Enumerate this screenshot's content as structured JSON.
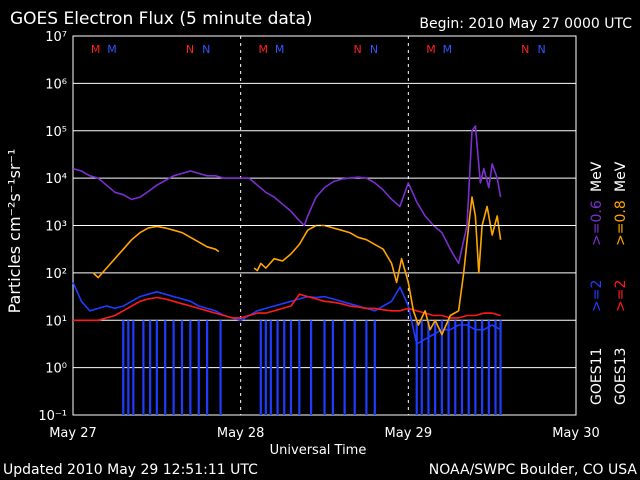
{
  "header": {
    "title": "GOES Electron Flux (5 minute data)",
    "begin": "Begin: 2010 May 27 0000 UTC"
  },
  "footer": {
    "updated": "Updated 2010 May 29 12:51:11 UTC",
    "credit": "NOAA/SWPC Boulder, CO USA"
  },
  "colors": {
    "background": "#000000",
    "goes11_high": "#7b2fd0",
    "goes13_high": "#ffa500",
    "goes11_low": "#1f3cff",
    "goes13_low": "#ff1a1a",
    "marker_M": "#ff2020",
    "marker_M2": "#3355ff",
    "marker_N": "#ff2020",
    "marker_N2": "#3355ff",
    "threshold": "#ffffff"
  },
  "markers": [
    {
      "label": "M",
      "color": "red"
    },
    {
      "label": "M",
      "color": "blue"
    },
    {
      "label": "N",
      "color": "red"
    },
    {
      "label": "N",
      "color": "blue"
    },
    {
      "label": "M",
      "color": "red"
    },
    {
      "label": "M",
      "color": "blue"
    },
    {
      "label": "N",
      "color": "red"
    },
    {
      "label": "N",
      "color": "blue"
    },
    {
      "label": "M",
      "color": "red"
    },
    {
      "label": "M",
      "color": "blue"
    },
    {
      "label": "N",
      "color": "red"
    },
    {
      "label": "N",
      "color": "blue"
    }
  ],
  "right_legend": {
    "goes11": "GOES11",
    "goes13": "GOES13",
    "goes11_low": ">=2",
    "goes13_low": ">=2",
    "goes11_high": ">=0.6",
    "goes13_high": ">=0.8",
    "unit": "MeV"
  },
  "chart_data": {
    "type": "line",
    "title": "GOES Electron Flux (5 minute data)",
    "xlabel": "Universal Time",
    "ylabel": "Particles cm⁻²s⁻¹sr⁻¹",
    "yscale": "log",
    "ylim_exp": [
      -1,
      7
    ],
    "xlim_days": [
      0,
      3
    ],
    "x_tick_labels": [
      "May 27",
      "May 28",
      "May 29",
      "May 30"
    ],
    "y_tick_exponents": [
      -1,
      0,
      1,
      2,
      3,
      4,
      5,
      6,
      7
    ],
    "y_tick_labels": [
      "10⁻¹",
      "10⁰",
      "10¹",
      "10²",
      "10³",
      "10⁴",
      "10⁵",
      "10⁶",
      "10⁷"
    ],
    "threshold_exp": 3,
    "grid": true,
    "series": [
      {
        "name": "GOES11 >=0.6 MeV",
        "points": [
          [
            0,
            4.2
          ],
          [
            0.05,
            4.15
          ],
          [
            0.1,
            4.05
          ],
          [
            0.15,
            4.0
          ],
          [
            0.2,
            3.85
          ],
          [
            0.25,
            3.7
          ],
          [
            0.3,
            3.65
          ],
          [
            0.35,
            3.55
          ],
          [
            0.4,
            3.6
          ],
          [
            0.45,
            3.72
          ],
          [
            0.5,
            3.85
          ],
          [
            0.55,
            3.95
          ],
          [
            0.6,
            4.05
          ],
          [
            0.65,
            4.1
          ],
          [
            0.7,
            4.15
          ],
          [
            0.75,
            4.1
          ],
          [
            0.8,
            4.05
          ],
          [
            0.85,
            4.05
          ],
          [
            0.9,
            4.0
          ],
          [
            0.95,
            4.0
          ],
          [
            1.0,
            4.0
          ],
          [
            1.05,
            4.0
          ],
          [
            1.1,
            3.85
          ],
          [
            1.15,
            3.7
          ],
          [
            1.2,
            3.6
          ],
          [
            1.25,
            3.45
          ],
          [
            1.3,
            3.3
          ],
          [
            1.35,
            3.1
          ],
          [
            1.38,
            3.0
          ],
          [
            1.4,
            3.2
          ],
          [
            1.45,
            3.6
          ],
          [
            1.5,
            3.8
          ],
          [
            1.55,
            3.92
          ],
          [
            1.6,
            3.98
          ],
          [
            1.65,
            4.0
          ],
          [
            1.7,
            4.02
          ],
          [
            1.75,
            4.0
          ],
          [
            1.8,
            3.9
          ],
          [
            1.85,
            3.75
          ],
          [
            1.9,
            3.55
          ],
          [
            1.95,
            3.4
          ],
          [
            2.0,
            3.9
          ],
          [
            2.05,
            3.5
          ],
          [
            2.1,
            3.2
          ],
          [
            2.15,
            3.0
          ],
          [
            2.2,
            2.85
          ],
          [
            2.25,
            2.5
          ],
          [
            2.3,
            2.2
          ],
          [
            2.35,
            3.0
          ],
          [
            2.38,
            5.0
          ],
          [
            2.4,
            5.1
          ],
          [
            2.43,
            3.9
          ],
          [
            2.45,
            4.2
          ],
          [
            2.48,
            3.8
          ],
          [
            2.5,
            4.3
          ],
          [
            2.53,
            4.0
          ],
          [
            2.55,
            3.6
          ]
        ]
      },
      {
        "name": "GOES13 >=0.8 MeV",
        "points": [
          [
            0.12,
            2.0
          ],
          [
            0.15,
            1.9
          ],
          [
            0.2,
            2.1
          ],
          [
            0.25,
            2.3
          ],
          [
            0.3,
            2.5
          ],
          [
            0.35,
            2.7
          ],
          [
            0.4,
            2.85
          ],
          [
            0.45,
            2.95
          ],
          [
            0.5,
            2.98
          ],
          [
            0.55,
            2.95
          ],
          [
            0.6,
            2.9
          ],
          [
            0.65,
            2.85
          ],
          [
            0.7,
            2.75
          ],
          [
            0.75,
            2.65
          ],
          [
            0.8,
            2.55
          ],
          [
            0.85,
            2.5
          ],
          [
            0.87,
            2.45
          ],
          null,
          [
            1.08,
            2.1
          ],
          [
            1.1,
            2.05
          ],
          [
            1.12,
            2.2
          ],
          [
            1.15,
            2.1
          ],
          [
            1.2,
            2.3
          ],
          [
            1.25,
            2.25
          ],
          [
            1.3,
            2.4
          ],
          [
            1.35,
            2.6
          ],
          [
            1.4,
            2.9
          ],
          [
            1.45,
            3.0
          ],
          [
            1.5,
            3.0
          ],
          [
            1.55,
            2.95
          ],
          [
            1.6,
            2.9
          ],
          [
            1.65,
            2.85
          ],
          [
            1.7,
            2.75
          ],
          [
            1.75,
            2.7
          ],
          [
            1.8,
            2.6
          ],
          [
            1.85,
            2.5
          ],
          [
            1.9,
            2.2
          ],
          [
            1.93,
            1.8
          ],
          [
            1.96,
            2.3
          ],
          [
            2.0,
            1.8
          ],
          [
            2.03,
            1.2
          ],
          [
            2.06,
            0.9
          ],
          [
            2.1,
            1.2
          ],
          [
            2.13,
            0.8
          ],
          [
            2.16,
            1.0
          ],
          [
            2.2,
            0.7
          ],
          [
            2.25,
            1.1
          ],
          [
            2.3,
            1.2
          ],
          [
            2.33,
            2.0
          ],
          [
            2.36,
            3.0
          ],
          [
            2.38,
            3.6
          ],
          [
            2.4,
            3.2
          ],
          [
            2.42,
            2.0
          ],
          [
            2.44,
            3.0
          ],
          [
            2.47,
            3.4
          ],
          [
            2.5,
            2.8
          ],
          [
            2.53,
            3.2
          ],
          [
            2.55,
            2.7
          ]
        ]
      },
      {
        "name": "GOES11 >=2 MeV",
        "points": [
          [
            0,
            1.8
          ],
          [
            0.05,
            1.4
          ],
          [
            0.1,
            1.2
          ],
          [
            0.15,
            1.25
          ],
          [
            0.2,
            1.3
          ],
          [
            0.25,
            1.25
          ],
          [
            0.3,
            1.3
          ],
          [
            0.35,
            1.4
          ],
          [
            0.4,
            1.5
          ],
          [
            0.45,
            1.55
          ],
          [
            0.5,
            1.6
          ],
          [
            0.55,
            1.55
          ],
          [
            0.6,
            1.5
          ],
          [
            0.65,
            1.45
          ],
          [
            0.7,
            1.4
          ],
          [
            0.75,
            1.3
          ],
          [
            0.8,
            1.25
          ],
          [
            0.85,
            1.2
          ],
          [
            0.9,
            1.1
          ],
          [
            0.95,
            1.05
          ],
          [
            1.0,
            1.0
          ],
          [
            1.05,
            1.1
          ],
          [
            1.1,
            1.2
          ],
          [
            1.15,
            1.25
          ],
          [
            1.2,
            1.3
          ],
          [
            1.25,
            1.35
          ],
          [
            1.3,
            1.4
          ],
          [
            1.35,
            1.45
          ],
          [
            1.4,
            1.5
          ],
          [
            1.45,
            1.48
          ],
          [
            1.5,
            1.5
          ],
          [
            1.55,
            1.45
          ],
          [
            1.6,
            1.4
          ],
          [
            1.65,
            1.35
          ],
          [
            1.7,
            1.3
          ],
          [
            1.75,
            1.25
          ],
          [
            1.8,
            1.2
          ],
          [
            1.85,
            1.3
          ],
          [
            1.9,
            1.4
          ],
          [
            1.95,
            1.7
          ],
          [
            2.0,
            1.3
          ],
          [
            2.05,
            0.5
          ],
          [
            2.1,
            0.6
          ],
          [
            2.15,
            0.7
          ],
          [
            2.2,
            0.8
          ],
          [
            2.25,
            0.8
          ],
          [
            2.3,
            0.9
          ],
          [
            2.35,
            0.9
          ],
          [
            2.4,
            0.8
          ],
          [
            2.45,
            0.8
          ],
          [
            2.5,
            0.9
          ],
          [
            2.55,
            0.8
          ]
        ],
        "dropouts_days": [
          0.3,
          0.33,
          0.36,
          0.42,
          0.46,
          0.5,
          0.55,
          0.6,
          0.65,
          0.7,
          0.75,
          0.8,
          0.88,
          1.12,
          1.15,
          1.18,
          1.22,
          1.26,
          1.3,
          1.35,
          1.42,
          1.5,
          1.55,
          1.62,
          1.68,
          1.75,
          1.8,
          2.05,
          2.08,
          2.12,
          2.16,
          2.2,
          2.24,
          2.28,
          2.32,
          2.36,
          2.4,
          2.44,
          2.48,
          2.52,
          2.55
        ]
      },
      {
        "name": "GOES13 >=2 MeV",
        "points": [
          [
            0,
            1.0
          ],
          [
            0.05,
            1.0
          ],
          [
            0.1,
            1.0
          ],
          [
            0.15,
            1.0
          ],
          [
            0.2,
            1.05
          ],
          [
            0.25,
            1.1
          ],
          [
            0.3,
            1.2
          ],
          [
            0.35,
            1.3
          ],
          [
            0.4,
            1.4
          ],
          [
            0.45,
            1.45
          ],
          [
            0.5,
            1.48
          ],
          [
            0.55,
            1.45
          ],
          [
            0.6,
            1.4
          ],
          [
            0.65,
            1.35
          ],
          [
            0.7,
            1.3
          ],
          [
            0.75,
            1.25
          ],
          [
            0.8,
            1.2
          ],
          [
            0.85,
            1.15
          ],
          [
            0.9,
            1.1
          ],
          [
            0.95,
            1.05
          ],
          [
            1.0,
            1.05
          ],
          [
            1.05,
            1.1
          ],
          [
            1.1,
            1.15
          ],
          [
            1.15,
            1.15
          ],
          [
            1.2,
            1.2
          ],
          [
            1.25,
            1.25
          ],
          [
            1.3,
            1.3
          ],
          [
            1.35,
            1.55
          ],
          [
            1.4,
            1.5
          ],
          [
            1.45,
            1.45
          ],
          [
            1.5,
            1.4
          ],
          [
            1.55,
            1.38
          ],
          [
            1.6,
            1.35
          ],
          [
            1.65,
            1.3
          ],
          [
            1.7,
            1.28
          ],
          [
            1.75,
            1.25
          ],
          [
            1.8,
            1.25
          ],
          [
            1.85,
            1.22
          ],
          [
            1.9,
            1.2
          ],
          [
            1.95,
            1.2
          ],
          [
            2.0,
            1.25
          ],
          [
            2.05,
            1.2
          ],
          [
            2.1,
            1.15
          ],
          [
            2.15,
            1.1
          ],
          [
            2.2,
            1.1
          ],
          [
            2.25,
            1.05
          ],
          [
            2.3,
            1.05
          ],
          [
            2.35,
            1.1
          ],
          [
            2.4,
            1.1
          ],
          [
            2.45,
            1.15
          ],
          [
            2.5,
            1.15
          ],
          [
            2.55,
            1.1
          ]
        ]
      }
    ]
  }
}
